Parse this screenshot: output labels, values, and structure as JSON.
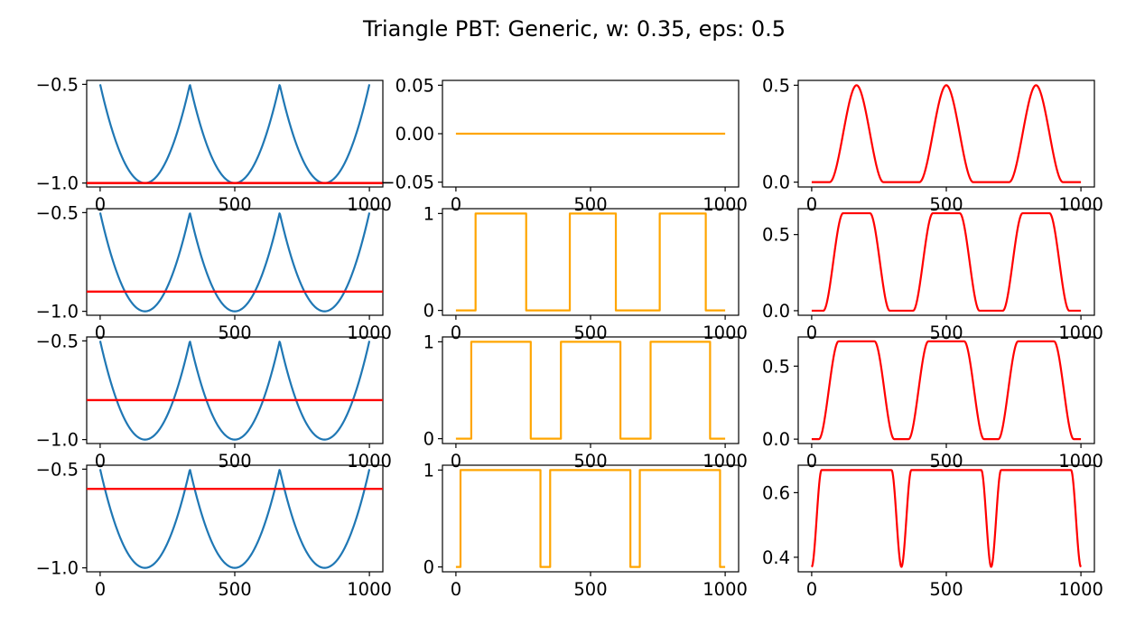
{
  "figure": {
    "title": "Triangle PBT: Generic, w: 0.35, eps: 0.5"
  },
  "chart_data": {
    "type": "line",
    "title": "Triangle PBT: Generic, w: 0.35, eps: 0.5",
    "grid": false,
    "colors": {
      "signal": "#1f77b4",
      "threshold": "#ff0000",
      "gate": "#ffa500",
      "output": "#ff0000"
    },
    "rows": [
      {
        "threshold": -1.0,
        "gate_intervals": [],
        "output_peak": 0.5,
        "panels": [
          {
            "kind": "signal",
            "xlim": [
              -50,
              1050
            ],
            "xticks": [
              0,
              500,
              1000
            ],
            "ylim": [
              -1.02,
              -0.48
            ],
            "yticks": [
              -0.5,
              -1.0
            ],
            "ytick_labels": [
              "−0.5",
              "−1.0"
            ]
          },
          {
            "kind": "gate",
            "xlim": [
              -50,
              1050
            ],
            "xticks": [
              0,
              500,
              1000
            ],
            "ylim": [
              -0.055,
              0.055
            ],
            "yticks": [
              0.05,
              0.0,
              -0.05
            ],
            "ytick_labels": [
              "0.05",
              "0.00",
              "−0.05"
            ]
          },
          {
            "kind": "output",
            "xlim": [
              -50,
              1050
            ],
            "xticks": [
              0,
              500,
              1000
            ],
            "ylim": [
              -0.025,
              0.525
            ],
            "yticks": [
              0.5,
              0.0
            ],
            "ytick_labels": [
              "0.5",
              "0.0"
            ]
          }
        ]
      },
      {
        "threshold": -0.9,
        "gate_intervals": [
          [
            73,
            260
          ],
          [
            423,
            593
          ],
          [
            757,
            927
          ]
        ],
        "output_peak": 0.64,
        "panels": [
          {
            "kind": "signal",
            "xlim": [
              -50,
              1050
            ],
            "xticks": [
              0,
              500,
              1000
            ],
            "ylim": [
              -1.02,
              -0.48
            ],
            "yticks": [
              -0.5,
              -1.0
            ],
            "ytick_labels": [
              "−0.5",
              "−1.0"
            ]
          },
          {
            "kind": "gate",
            "xlim": [
              -50,
              1050
            ],
            "xticks": [
              0,
              500,
              1000
            ],
            "ylim": [
              -0.05,
              1.05
            ],
            "yticks": [
              1,
              0
            ],
            "ytick_labels": [
              "1",
              "0"
            ]
          },
          {
            "kind": "output",
            "xlim": [
              -50,
              1050
            ],
            "xticks": [
              0,
              500,
              1000
            ],
            "ylim": [
              -0.03,
              0.67
            ],
            "yticks": [
              0.5,
              0.0
            ],
            "ytick_labels": [
              "0.5",
              "0.0"
            ]
          }
        ]
      },
      {
        "threshold": -0.8,
        "gate_intervals": [
          [
            57,
            277
          ],
          [
            390,
            610
          ],
          [
            723,
            943
          ]
        ],
        "output_peak": 0.67,
        "panels": [
          {
            "kind": "signal",
            "xlim": [
              -50,
              1050
            ],
            "xticks": [
              0,
              500,
              1000
            ],
            "ylim": [
              -1.02,
              -0.48
            ],
            "yticks": [
              -0.5,
              -1.0
            ],
            "ytick_labels": [
              "−0.5",
              "−1.0"
            ]
          },
          {
            "kind": "gate",
            "xlim": [
              -50,
              1050
            ],
            "xticks": [
              0,
              500,
              1000
            ],
            "ylim": [
              -0.05,
              1.05
            ],
            "yticks": [
              1,
              0
            ],
            "ytick_labels": [
              "1",
              "0"
            ]
          },
          {
            "kind": "output",
            "xlim": [
              -50,
              1050
            ],
            "xticks": [
              0,
              500,
              1000
            ],
            "ylim": [
              -0.03,
              0.7
            ],
            "yticks": [
              0.5,
              0.0
            ],
            "ytick_labels": [
              "0.5",
              "0.0"
            ]
          }
        ]
      },
      {
        "threshold": -0.6,
        "gate_intervals": [
          [
            17,
            313
          ],
          [
            350,
            647
          ],
          [
            683,
            980
          ]
        ],
        "output_peak": 0.67,
        "output_min": 0.37,
        "panels": [
          {
            "kind": "signal",
            "xlim": [
              -50,
              1050
            ],
            "xticks": [
              0,
              500,
              1000
            ],
            "ylim": [
              -1.02,
              -0.48
            ],
            "yticks": [
              -0.5,
              -1.0
            ],
            "ytick_labels": [
              "−0.5",
              "−1.0"
            ]
          },
          {
            "kind": "gate",
            "xlim": [
              -50,
              1050
            ],
            "xticks": [
              0,
              500,
              1000
            ],
            "ylim": [
              -0.05,
              1.05
            ],
            "yticks": [
              1,
              0
            ],
            "ytick_labels": [
              "1",
              "0"
            ]
          },
          {
            "kind": "output",
            "xlim": [
              -50,
              1050
            ],
            "xticks": [
              0,
              500,
              1000
            ],
            "ylim": [
              0.355,
              0.685
            ],
            "yticks": [
              0.6,
              0.4
            ],
            "ytick_labels": [
              "0.6",
              "0.4"
            ]
          }
        ]
      }
    ]
  }
}
